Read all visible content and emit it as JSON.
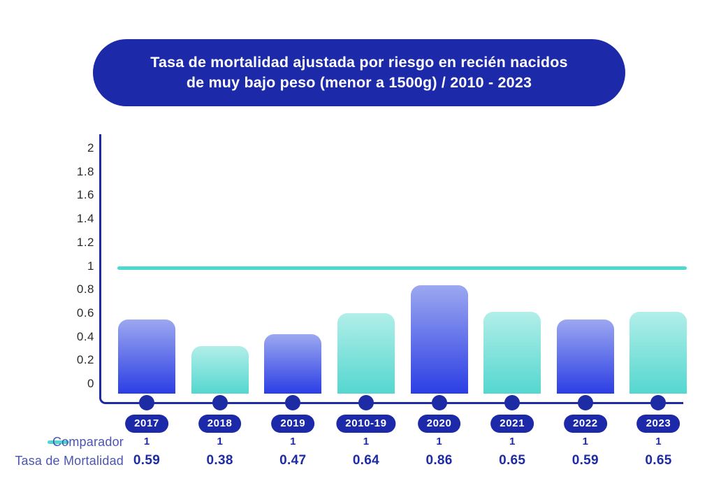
{
  "title": {
    "line1": "Tasa de mortalidad ajustada por riesgo en recién nacidos",
    "line2": "de muy bajo peso (menor a 1500g) / 2010 - 2023"
  },
  "legend": {
    "comparador_label": "Comparador",
    "mortalidad_label": "Tasa de Mortalidad"
  },
  "colors": {
    "title_pill_bg": "#1C2AA9",
    "title_text": "#FFFFFF",
    "axis": "#1D2CA4",
    "year_pill_bg": "#1C2AA9",
    "dot": "#1D2CA4",
    "comparator_line": "#4FD8D1",
    "bar_blue_top": "#9CA8F0",
    "bar_blue_bottom": "#2B3EE4",
    "bar_teal_top": "#B2EEE9",
    "bar_teal_bottom": "#54D7CF",
    "legend_label_text": "#4A55B2",
    "value_text": "#1D2CA4",
    "ytick_text": "#2B2B2E"
  },
  "chart_data": {
    "type": "bar",
    "title": "Tasa de mortalidad ajustada por riesgo en recién nacidos de muy bajo peso (menor a 1500g) / 2010 - 2023",
    "categories": [
      "2017",
      "2018",
      "2019",
      "2010-19",
      "2020",
      "2021",
      "2022",
      "2023"
    ],
    "series": [
      {
        "name": "Comparador",
        "type": "line",
        "values": [
          1,
          1,
          1,
          1,
          1,
          1,
          1,
          1
        ]
      },
      {
        "name": "Tasa de Mortalidad",
        "type": "bar",
        "values": [
          0.59,
          0.38,
          0.47,
          0.64,
          0.86,
          0.65,
          0.59,
          0.65
        ]
      }
    ],
    "ylim": [
      0,
      2
    ],
    "yticks": [
      "2",
      "1.8",
      "1.6",
      "1.4",
      "1.2",
      "1",
      "0.8",
      "0.6",
      "0.4",
      "0.2",
      "0"
    ],
    "grid": false,
    "legend_position": "bottom-left"
  }
}
